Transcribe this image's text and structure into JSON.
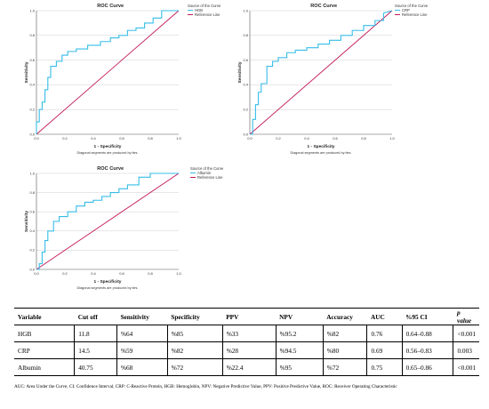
{
  "chart_data": [
    {
      "type": "line",
      "title": "ROC Curve",
      "xlabel": "1 - Specificity",
      "ylabel": "Sensitivity",
      "xlim": [
        0,
        1.0
      ],
      "ylim": [
        0,
        1.0
      ],
      "xticks": [
        "0.0",
        "0.2",
        "0.4",
        "0.6",
        "0.8",
        "1.0"
      ],
      "yticks": [
        "0.0",
        "0.2",
        "0.4",
        "0.6",
        "0.8",
        "1.0"
      ],
      "note": "Diagonal segments are produced by ties.",
      "legend_title": "Source of the Curve",
      "legend_position": "top-right",
      "series": [
        {
          "name": "HGB",
          "color": "#36bde8",
          "x": [
            0.0,
            0.0,
            0.02,
            0.02,
            0.04,
            0.04,
            0.06,
            0.06,
            0.08,
            0.08,
            0.1,
            0.1,
            0.14,
            0.14,
            0.18,
            0.18,
            0.22,
            0.22,
            0.28,
            0.28,
            0.36,
            0.36,
            0.45,
            0.45,
            0.52,
            0.52,
            0.58,
            0.58,
            0.64,
            0.64,
            0.7,
            0.7,
            0.76,
            0.76,
            0.82,
            0.82,
            0.88,
            0.88,
            1.0
          ],
          "y": [
            0.0,
            0.1,
            0.1,
            0.2,
            0.2,
            0.26,
            0.26,
            0.36,
            0.36,
            0.46,
            0.46,
            0.55,
            0.55,
            0.59,
            0.59,
            0.64,
            0.64,
            0.67,
            0.67,
            0.69,
            0.69,
            0.72,
            0.72,
            0.75,
            0.75,
            0.78,
            0.78,
            0.8,
            0.8,
            0.84,
            0.84,
            0.86,
            0.86,
            0.9,
            0.9,
            0.94,
            0.94,
            1.0,
            1.0
          ]
        },
        {
          "name": "Reference Line",
          "color": "#c2185b",
          "x": [
            0.0,
            1.0
          ],
          "y": [
            0.0,
            1.0
          ]
        }
      ]
    },
    {
      "type": "line",
      "title": "ROC Curve",
      "xlabel": "1 - Specificity",
      "ylabel": "Sensitivity",
      "xlim": [
        0,
        1.0
      ],
      "ylim": [
        0,
        1.0
      ],
      "xticks": [
        "0.0",
        "0.2",
        "0.4",
        "0.6",
        "0.8",
        "1.0"
      ],
      "yticks": [
        "0.0",
        "0.2",
        "0.4",
        "0.6",
        "0.8",
        "1.0"
      ],
      "note": "Diagonal segments are produced by ties.",
      "legend_title": "Source of the Curve",
      "legend_position": "top-right",
      "series": [
        {
          "name": "CRP",
          "color": "#36bde8",
          "x": [
            0.0,
            0.02,
            0.02,
            0.04,
            0.04,
            0.06,
            0.06,
            0.08,
            0.08,
            0.12,
            0.12,
            0.16,
            0.16,
            0.2,
            0.2,
            0.26,
            0.26,
            0.32,
            0.32,
            0.4,
            0.4,
            0.48,
            0.48,
            0.56,
            0.56,
            0.64,
            0.64,
            0.72,
            0.72,
            0.8,
            0.8,
            0.88,
            0.88,
            0.94,
            0.94,
            1.0
          ],
          "y": [
            0.0,
            0.0,
            0.12,
            0.12,
            0.24,
            0.24,
            0.34,
            0.34,
            0.41,
            0.41,
            0.55,
            0.55,
            0.59,
            0.59,
            0.62,
            0.62,
            0.66,
            0.66,
            0.68,
            0.68,
            0.7,
            0.7,
            0.73,
            0.73,
            0.76,
            0.76,
            0.8,
            0.8,
            0.84,
            0.84,
            0.88,
            0.88,
            0.92,
            0.92,
            0.98,
            1.0
          ]
        },
        {
          "name": "Reference Line",
          "color": "#c2185b",
          "x": [
            0.0,
            1.0
          ],
          "y": [
            0.0,
            1.0
          ]
        }
      ]
    },
    {
      "type": "line",
      "title": "ROC Curve",
      "xlabel": "1 - Specificity",
      "ylabel": "Sensitivity",
      "xlim": [
        0,
        1.0
      ],
      "ylim": [
        0,
        1.0
      ],
      "xticks": [
        "0.0",
        "0.2",
        "0.4",
        "0.6",
        "0.8",
        "1.0"
      ],
      "yticks": [
        "0.0",
        "0.2",
        "0.4",
        "0.6",
        "0.8",
        "1.0"
      ],
      "note": "Diagonal segments are produced by ties.",
      "legend_title": "Source of the Curve",
      "legend_position": "top-right",
      "series": [
        {
          "name": "Albumin",
          "color": "#36bde8",
          "x": [
            0.0,
            0.02,
            0.02,
            0.04,
            0.04,
            0.06,
            0.06,
            0.08,
            0.08,
            0.12,
            0.12,
            0.16,
            0.16,
            0.22,
            0.22,
            0.28,
            0.28,
            0.34,
            0.34,
            0.4,
            0.4,
            0.46,
            0.46,
            0.52,
            0.52,
            0.58,
            0.58,
            0.64,
            0.64,
            0.72,
            0.72,
            0.8,
            0.8,
            1.0
          ],
          "y": [
            0.0,
            0.0,
            0.06,
            0.06,
            0.18,
            0.18,
            0.3,
            0.3,
            0.4,
            0.4,
            0.5,
            0.5,
            0.55,
            0.55,
            0.6,
            0.6,
            0.66,
            0.66,
            0.7,
            0.7,
            0.72,
            0.72,
            0.76,
            0.76,
            0.8,
            0.8,
            0.84,
            0.84,
            0.88,
            0.88,
            0.96,
            0.96,
            1.0,
            1.0
          ]
        },
        {
          "name": "Reference Line",
          "color": "#c2185b",
          "x": [
            0.0,
            1.0
          ],
          "y": [
            0.0,
            1.0
          ]
        }
      ]
    },
    {
      "type": "table",
      "columns": [
        "Variable",
        "Cut off",
        "Sensitivity",
        "Specificity",
        "PPV",
        "NPV",
        "Accuracy",
        "AUC",
        "%95 CI",
        "p value"
      ],
      "rows": [
        [
          "HGB",
          "11.8",
          "%64",
          "%85",
          "%33",
          "%95.2",
          "%82",
          "0.76",
          "0.64–0.88",
          "<0.001"
        ],
        [
          "CRP",
          "14.5",
          "%59",
          "%82",
          "%28",
          "%94.5",
          "%80",
          "0.69",
          "0.56–0.83",
          "0.003"
        ],
        [
          "Albumin",
          "40.75",
          "%68",
          "%72",
          "%22.4",
          "%95",
          "%72",
          "0.75",
          "0.65–0.86",
          "<0.001"
        ]
      ],
      "footnote": "AUC: Area Under the Curve, CI: Confidence Interval, CRP: C-Reactive Protein, HGB: Hemoglobin, NPV: Negative Predictive Value, PPV: Positive Predictive Value, ROC: Receiver Operating Characteristic"
    }
  ]
}
